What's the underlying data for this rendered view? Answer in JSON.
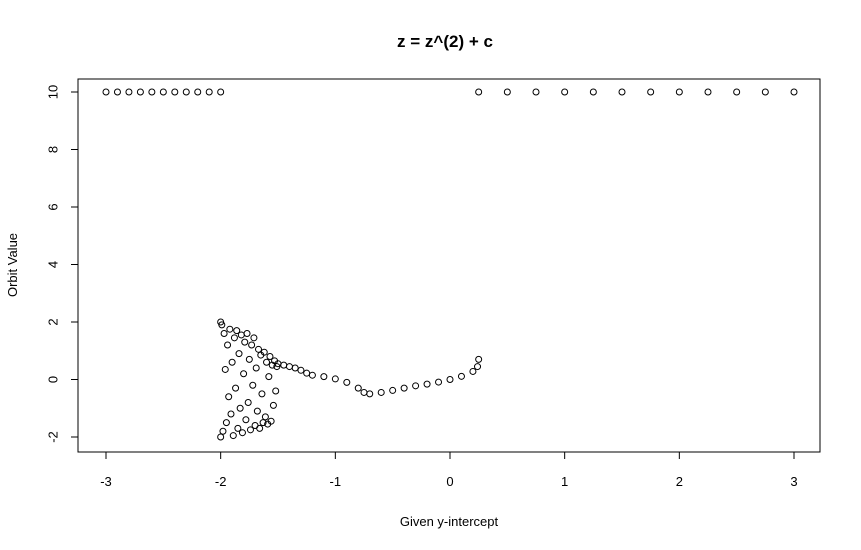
{
  "chart_data": {
    "type": "scatter",
    "title": "z = z^(2) + c",
    "xlabel": "Given y-intercept",
    "ylabel": "Orbit Value",
    "xlim": [
      -3,
      3
    ],
    "ylim": [
      -2,
      10
    ],
    "x_ticks": [
      -3,
      -2,
      -1,
      0,
      1,
      2,
      3
    ],
    "y_ticks": [
      -2,
      0,
      2,
      4,
      6,
      8,
      10
    ],
    "x_tick_labels": [
      "-3",
      "-2",
      "-1",
      "0",
      "1",
      "2",
      "3"
    ],
    "y_tick_labels": [
      "-2",
      "0",
      "2",
      "4",
      "6",
      "8",
      "10"
    ],
    "grid": false,
    "legend": "none",
    "marker": "open-circle",
    "marker_color": "#000000",
    "series": [
      {
        "points": [
          [
            -3.0,
            10
          ],
          [
            -2.9,
            10
          ],
          [
            -2.8,
            10
          ],
          [
            -2.7,
            10
          ],
          [
            -2.6,
            10
          ],
          [
            -2.5,
            10
          ],
          [
            -2.4,
            10
          ],
          [
            -2.3,
            10
          ],
          [
            -2.2,
            10
          ],
          [
            -2.1,
            10
          ],
          [
            -2.0,
            10
          ],
          [
            -2.0,
            2.0
          ],
          [
            -2.0,
            -2.0
          ],
          [
            -1.99,
            1.9
          ],
          [
            -1.98,
            -1.8
          ],
          [
            -1.97,
            1.6
          ],
          [
            -1.96,
            0.35
          ],
          [
            -1.95,
            -1.5
          ],
          [
            -1.94,
            1.2
          ],
          [
            -1.93,
            -0.6
          ],
          [
            -1.92,
            1.75
          ],
          [
            -1.91,
            -1.2
          ],
          [
            -1.9,
            0.6
          ],
          [
            -1.89,
            -1.95
          ],
          [
            -1.88,
            1.45
          ],
          [
            -1.87,
            -0.3
          ],
          [
            -1.86,
            1.7
          ],
          [
            -1.85,
            -1.7
          ],
          [
            -1.84,
            0.9
          ],
          [
            -1.83,
            -1.0
          ],
          [
            -1.82,
            1.55
          ],
          [
            -1.81,
            -1.85
          ],
          [
            -1.8,
            0.2
          ],
          [
            -1.79,
            1.3
          ],
          [
            -1.78,
            -1.4
          ],
          [
            -1.77,
            1.6
          ],
          [
            -1.76,
            -0.8
          ],
          [
            -1.75,
            0.7
          ],
          [
            -1.74,
            -1.75
          ],
          [
            -1.73,
            1.2
          ],
          [
            -1.72,
            -0.2
          ],
          [
            -1.71,
            1.45
          ],
          [
            -1.7,
            -1.6
          ],
          [
            -1.69,
            0.4
          ],
          [
            -1.68,
            -1.1
          ],
          [
            -1.67,
            1.05
          ],
          [
            -1.66,
            -1.7
          ],
          [
            -1.65,
            0.85
          ],
          [
            -1.64,
            -0.5
          ],
          [
            -1.63,
            -1.5
          ],
          [
            -1.62,
            0.95
          ],
          [
            -1.61,
            -1.3
          ],
          [
            -1.6,
            0.6
          ],
          [
            -1.59,
            -1.55
          ],
          [
            -1.58,
            0.1
          ],
          [
            -1.57,
            0.8
          ],
          [
            -1.56,
            -1.45
          ],
          [
            -1.55,
            0.5
          ],
          [
            -1.54,
            -0.9
          ],
          [
            -1.53,
            0.65
          ],
          [
            -1.52,
            -0.4
          ],
          [
            -1.51,
            0.45
          ],
          [
            -1.5,
            0.55
          ],
          [
            -1.45,
            0.5
          ],
          [
            -1.4,
            0.45
          ],
          [
            -1.35,
            0.4
          ],
          [
            -1.3,
            0.32
          ],
          [
            -1.25,
            0.22
          ],
          [
            -1.2,
            0.15
          ],
          [
            -1.1,
            0.1
          ],
          [
            -1.0,
            0.02
          ],
          [
            -0.9,
            -0.1
          ],
          [
            -0.8,
            -0.3
          ],
          [
            -0.75,
            -0.45
          ],
          [
            -0.7,
            -0.5
          ],
          [
            -0.6,
            -0.45
          ],
          [
            -0.5,
            -0.38
          ],
          [
            -0.4,
            -0.3
          ],
          [
            -0.3,
            -0.22
          ],
          [
            -0.2,
            -0.16
          ],
          [
            -0.1,
            -0.09
          ],
          [
            0.0,
            0.0
          ],
          [
            0.1,
            0.11
          ],
          [
            0.2,
            0.28
          ],
          [
            0.24,
            0.45
          ],
          [
            0.25,
            0.7
          ],
          [
            0.25,
            10
          ],
          [
            0.5,
            10
          ],
          [
            0.75,
            10
          ],
          [
            1.0,
            10
          ],
          [
            1.25,
            10
          ],
          [
            1.5,
            10
          ],
          [
            1.75,
            10
          ],
          [
            2.0,
            10
          ],
          [
            2.25,
            10
          ],
          [
            2.5,
            10
          ],
          [
            2.75,
            10
          ],
          [
            3.0,
            10
          ]
        ]
      }
    ]
  }
}
